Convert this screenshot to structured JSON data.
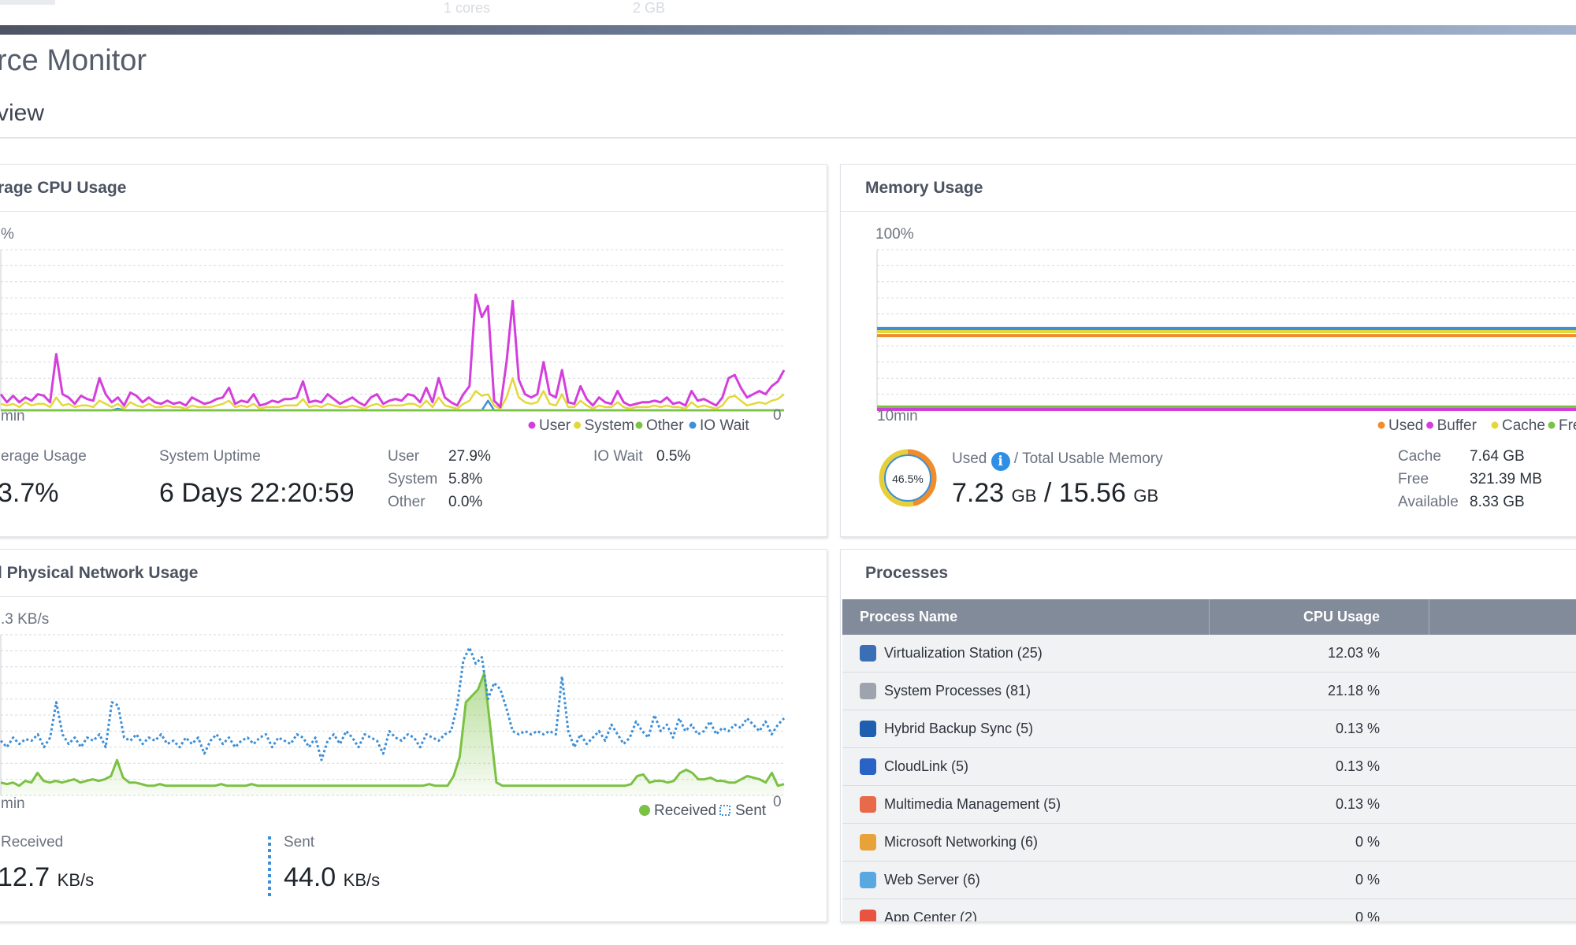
{
  "header": {
    "hint_cores": "1 cores",
    "hint_memory": "2 GB",
    "app_title": "rce Monitor",
    "section_title": "view"
  },
  "cpu": {
    "title": "rage CPU Usage",
    "y_max_label": "%",
    "x_label": "min",
    "x_end_label": "0",
    "legend": [
      {
        "label": "User",
        "color": "#d43fdc"
      },
      {
        "label": "System",
        "color": "#e3d83a"
      },
      {
        "label": "Other",
        "color": "#7bc143"
      },
      {
        "label": "IO Wait",
        "color": "#3c8fd8"
      }
    ],
    "average_label": "erage Usage",
    "average_value": "3.7%",
    "uptime_label": "System Uptime",
    "uptime_value": "6 Days 22:20:59",
    "user_label": "User",
    "user_value": "27.9%",
    "system_label": "System",
    "system_value": "5.8%",
    "other_label": "Other",
    "other_value": "0.0%",
    "iowait_label": "IO Wait",
    "iowait_value": "0.5%"
  },
  "memory": {
    "title": "Memory Usage",
    "y_max_label": "100%",
    "x_label": "10min",
    "legend": [
      {
        "label": "Used",
        "color": "#f08c2b"
      },
      {
        "label": "Buffer",
        "color": "#d43fdc"
      },
      {
        "label": "Cache",
        "color": "#e3d83a"
      },
      {
        "label": "Fre",
        "color": "#7bc143"
      }
    ],
    "donut_percent": "46.5%",
    "donut_fraction": 0.465,
    "used_label": "Used",
    "total_label": "/ Total Usable Memory",
    "used_value": "7.23",
    "used_unit": "GB",
    "slash": "/",
    "total_value": "15.56",
    "total_unit": "GB",
    "cache_label": "Cache",
    "cache_value": "7.64 GB",
    "free_label": "Free",
    "free_value": "321.39 MB",
    "available_label": "Available",
    "available_value": "8.33 GB"
  },
  "network": {
    "title": "l Physical Network Usage",
    "y_max_label": ".3 KB/s",
    "x_label": "min",
    "x_end_label": "0",
    "legend_received": "Received",
    "legend_sent": "Sent",
    "received_label": "Received",
    "received_value": "12.7",
    "received_unit": "KB/s",
    "sent_label": "Sent",
    "sent_value": "44.0",
    "sent_unit": "KB/s"
  },
  "processes": {
    "title": "Processes",
    "col_name": "Process Name",
    "col_cpu": "CPU Usage",
    "rows": [
      {
        "name": "Virtualization Station (25)",
        "cpu": "12.03 %",
        "icon": "virtualization-icon",
        "color": "#3a6fb5"
      },
      {
        "name": "System Processes (81)",
        "cpu": "21.18 %",
        "icon": "system-processes-icon",
        "color": "#9ea4ad"
      },
      {
        "name": "Hybrid Backup Sync (5)",
        "cpu": "0.13 %",
        "icon": "backup-sync-icon",
        "color": "#1f5fb0"
      },
      {
        "name": "CloudLink (5)",
        "cpu": "0.13 %",
        "icon": "cloudlink-icon",
        "color": "#2a63c6"
      },
      {
        "name": "Multimedia Management (5)",
        "cpu": "0.13 %",
        "icon": "multimedia-icon",
        "color": "#e96a4a"
      },
      {
        "name": "Microsoft Networking (6)",
        "cpu": "0 %",
        "icon": "networking-icon",
        "color": "#e7a23a"
      },
      {
        "name": "Web Server (6)",
        "cpu": "0 %",
        "icon": "web-server-icon",
        "color": "#5aa8e0"
      },
      {
        "name": "App Center (2)",
        "cpu": "0 %",
        "icon": "app-center-icon",
        "color": "#e8543f"
      }
    ]
  },
  "chart_data": [
    {
      "type": "line",
      "title": "rage CPU Usage",
      "xlabel": "min",
      "series": [
        {
          "name": "User",
          "values": [
            10,
            5,
            9,
            5,
            8,
            6,
            10,
            9,
            5,
            35,
            10,
            8,
            4,
            9,
            7,
            6,
            20,
            10,
            5,
            8,
            3,
            11,
            9,
            5,
            8,
            5,
            4,
            6,
            4,
            5,
            3,
            8,
            6,
            4,
            5,
            7,
            8,
            14,
            4,
            6,
            5,
            10,
            3,
            4,
            6,
            5,
            7,
            7,
            8,
            18,
            5,
            6,
            5,
            10,
            7,
            4,
            6,
            8,
            5,
            3,
            8,
            10,
            4,
            6,
            7,
            6,
            10,
            9,
            5,
            14,
            5,
            20,
            8,
            5,
            3,
            10,
            15,
            72,
            58,
            65,
            6,
            2,
            30,
            68,
            19,
            10,
            8,
            10,
            30,
            10,
            8,
            25,
            5,
            4,
            15,
            7,
            3,
            8,
            5,
            4,
            12,
            5,
            3,
            4,
            5,
            5,
            6,
            5,
            8,
            4,
            5,
            3,
            12,
            6,
            7,
            5,
            3,
            8,
            20,
            22,
            14,
            8,
            10,
            12,
            10,
            15,
            18,
            25
          ]
        },
        {
          "name": "System",
          "values": [
            4,
            3,
            4,
            2,
            5,
            3,
            4,
            4,
            2,
            8,
            3,
            4,
            2,
            3,
            3,
            2,
            6,
            4,
            2,
            4,
            1,
            5,
            3,
            2,
            4,
            2,
            2,
            3,
            2,
            2,
            1,
            3,
            2,
            2,
            2,
            3,
            4,
            6,
            2,
            3,
            2,
            4,
            1,
            2,
            2,
            2,
            3,
            3,
            3,
            7,
            2,
            3,
            2,
            4,
            3,
            2,
            2,
            3,
            2,
            1,
            3,
            4,
            2,
            3,
            3,
            3,
            4,
            4,
            2,
            6,
            2,
            8,
            3,
            2,
            1,
            4,
            6,
            12,
            9,
            10,
            3,
            1,
            8,
            20,
            8,
            5,
            4,
            5,
            12,
            4,
            3,
            10,
            2,
            2,
            6,
            3,
            1,
            3,
            2,
            2,
            5,
            2,
            1,
            2,
            2,
            2,
            3,
            2,
            3,
            2,
            2,
            1,
            5,
            2,
            3,
            2,
            1,
            3,
            8,
            9,
            6,
            3,
            4,
            5,
            4,
            6,
            7,
            10
          ]
        },
        {
          "name": "Other",
          "values": [
            0,
            0,
            0,
            0,
            0,
            0,
            0,
            0,
            0,
            0,
            0,
            0,
            0,
            0,
            0,
            0,
            0,
            0,
            0,
            0,
            0,
            0,
            0,
            0,
            0,
            0,
            0,
            0,
            0,
            0,
            0,
            0,
            0,
            0,
            0,
            0,
            0,
            0,
            0,
            0,
            0,
            0,
            0,
            0,
            0,
            0,
            0,
            0,
            0,
            0,
            0,
            0,
            0,
            0,
            0,
            0,
            0,
            0,
            0,
            0,
            0,
            0,
            0,
            0,
            0,
            0,
            0,
            0,
            0,
            0,
            0,
            0,
            0,
            0,
            0,
            0,
            0,
            0,
            0,
            0,
            0,
            0,
            0,
            0,
            0,
            0,
            0,
            0,
            0,
            0,
            0,
            0,
            0,
            0,
            0,
            0,
            0,
            0,
            0,
            0,
            0,
            0,
            0,
            0,
            0,
            0,
            0,
            0,
            0,
            0,
            0,
            0,
            0,
            0,
            0,
            0,
            0,
            0,
            0,
            0,
            0,
            0,
            0,
            0,
            0,
            0,
            0,
            0
          ]
        },
        {
          "name": "IO Wait",
          "values": [
            0,
            0,
            0,
            0,
            0,
            0,
            0,
            0,
            0,
            0,
            0,
            0,
            0,
            0,
            0,
            0,
            0,
            0,
            0,
            1,
            0,
            0,
            0,
            0,
            0,
            0,
            0,
            0,
            0,
            0,
            0,
            0,
            0,
            0,
            0,
            0,
            0,
            0,
            0,
            0,
            0,
            0,
            0,
            0,
            0,
            0,
            0,
            0,
            0,
            0,
            0,
            0,
            0,
            0,
            0,
            0,
            0,
            0,
            0,
            0,
            0,
            0,
            0,
            0,
            0,
            0,
            0,
            0,
            0,
            0,
            0,
            0,
            0,
            0,
            0,
            0,
            0,
            0,
            0,
            6,
            0,
            0,
            0,
            0,
            0,
            0,
            0,
            0,
            0,
            0,
            0,
            0,
            0,
            0,
            0,
            0,
            0,
            0,
            0,
            0,
            0,
            0,
            0,
            0,
            0,
            0,
            0,
            0,
            0,
            0,
            0,
            0,
            0,
            0,
            0,
            0,
            0,
            0,
            0,
            0,
            0,
            0,
            0,
            0,
            0,
            0,
            0,
            0
          ]
        }
      ],
      "ylim": [
        0,
        100
      ]
    },
    {
      "type": "line",
      "title": "Memory Usage",
      "xlabel": "10min",
      "series": [
        {
          "name": "Used",
          "values": [
            46.5,
            46.5
          ]
        },
        {
          "name": "Buffer",
          "values": [
            0.5,
            0.5
          ]
        },
        {
          "name": "Cache",
          "values": [
            49,
            49
          ]
        },
        {
          "name": "Fre",
          "values": [
            2,
            2
          ]
        },
        {
          "name": "",
          "values": [
            51,
            51
          ]
        }
      ],
      "ylim": [
        0,
        100
      ]
    },
    {
      "type": "area",
      "title": "l Physical Network Usage",
      "xlabel": "min",
      "series": [
        {
          "name": "Received",
          "values": [
            8,
            7,
            8,
            6,
            9,
            8,
            14,
            9,
            8,
            9,
            8,
            9,
            10,
            8,
            9,
            10,
            9,
            10,
            12,
            22,
            11,
            8,
            8,
            7,
            6,
            6,
            7,
            6,
            6,
            6,
            6,
            6,
            6,
            6,
            6,
            6,
            7,
            6,
            6,
            6,
            6,
            7,
            6,
            6,
            6,
            6,
            6,
            6,
            6,
            6,
            6,
            6,
            6,
            6,
            6,
            6,
            6,
            6,
            6,
            6,
            6,
            6,
            6,
            6,
            6,
            6,
            6,
            6,
            6,
            6,
            7,
            6,
            6,
            6,
            12,
            24,
            58,
            62,
            66,
            76,
            42,
            8,
            6,
            6,
            6,
            6,
            6,
            6,
            6,
            6,
            6,
            6,
            6,
            6,
            6,
            6,
            6,
            6,
            6,
            6,
            6,
            6,
            6,
            7,
            12,
            13,
            8,
            9,
            9,
            8,
            9,
            14,
            16,
            14,
            10,
            10,
            11,
            9,
            9,
            8,
            8,
            10,
            12,
            11,
            10,
            8,
            14,
            6,
            7
          ]
        },
        {
          "name": "Sent",
          "values": [
            34,
            30,
            36,
            32,
            35,
            34,
            38,
            30,
            36,
            58,
            38,
            32,
            36,
            30,
            36,
            34,
            38,
            30,
            58,
            56,
            36,
            34,
            38,
            32,
            36,
            34,
            38,
            32,
            34,
            30,
            36,
            32,
            36,
            26,
            34,
            38,
            32,
            36,
            30,
            34,
            36,
            32,
            36,
            38,
            30,
            36,
            34,
            32,
            38,
            36,
            30,
            36,
            22,
            34,
            38,
            32,
            40,
            36,
            30,
            38,
            36,
            34,
            26,
            40,
            36,
            34,
            38,
            36,
            30,
            38,
            36,
            34,
            38,
            40,
            56,
            84,
            92,
            82,
            86,
            60,
            70,
            66,
            54,
            40,
            38,
            40,
            38,
            40,
            38,
            40,
            38,
            74,
            40,
            30,
            38,
            32,
            36,
            40,
            34,
            44,
            38,
            32,
            36,
            46,
            40,
            36,
            50,
            40,
            44,
            36,
            48,
            40,
            44,
            38,
            40,
            46,
            38,
            42,
            40,
            44,
            42,
            48,
            44,
            40,
            46,
            38,
            44,
            48
          ]
        }
      ],
      "ylim": [
        0,
        100
      ]
    }
  ]
}
